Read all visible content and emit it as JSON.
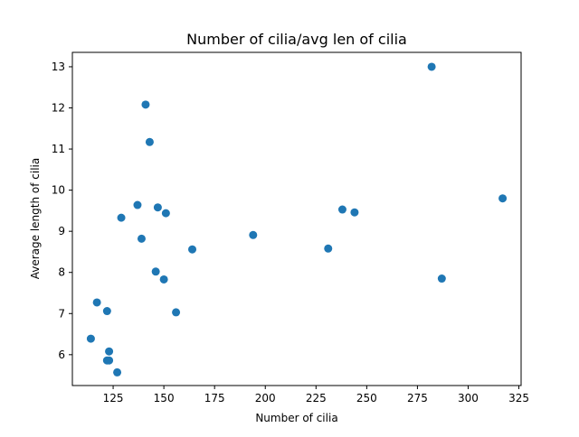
{
  "chart_data": {
    "type": "scatter",
    "title": "Number of cilia/avg len of cilia",
    "xlabel": "Number of cilia",
    "ylabel": "Average length of cilia",
    "xlim": [
      104.9,
      326.1
    ],
    "ylim": [
      5.25,
      13.35
    ],
    "xticks": [
      125,
      150,
      175,
      200,
      225,
      250,
      275,
      300,
      325
    ],
    "yticks": [
      6,
      7,
      8,
      9,
      10,
      11,
      12,
      13
    ],
    "grid": false,
    "marker_color": "#1f77b4",
    "points": [
      {
        "x": 114,
        "y": 6.39
      },
      {
        "x": 117,
        "y": 7.27
      },
      {
        "x": 122,
        "y": 7.06
      },
      {
        "x": 122,
        "y": 5.86
      },
      {
        "x": 123,
        "y": 6.08
      },
      {
        "x": 123,
        "y": 5.86
      },
      {
        "x": 127,
        "y": 5.57
      },
      {
        "x": 129,
        "y": 9.33
      },
      {
        "x": 137,
        "y": 9.64
      },
      {
        "x": 139,
        "y": 8.82
      },
      {
        "x": 141,
        "y": 12.08
      },
      {
        "x": 143,
        "y": 11.17
      },
      {
        "x": 146,
        "y": 8.02
      },
      {
        "x": 147,
        "y": 9.58
      },
      {
        "x": 150,
        "y": 7.83
      },
      {
        "x": 151,
        "y": 9.44
      },
      {
        "x": 156,
        "y": 7.03
      },
      {
        "x": 164,
        "y": 8.56
      },
      {
        "x": 194,
        "y": 8.91
      },
      {
        "x": 231,
        "y": 8.58
      },
      {
        "x": 238,
        "y": 9.53
      },
      {
        "x": 244,
        "y": 9.46
      },
      {
        "x": 282,
        "y": 13.0
      },
      {
        "x": 287,
        "y": 7.85
      },
      {
        "x": 317,
        "y": 9.8
      }
    ]
  }
}
